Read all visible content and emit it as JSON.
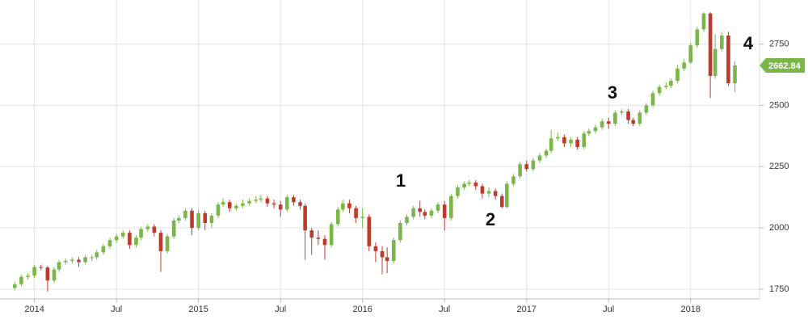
{
  "chart_data": {
    "type": "candlestick",
    "x": [
      2013.88,
      2013.92,
      2013.96,
      2014.0,
      2014.04,
      2014.08,
      2014.12,
      2014.15,
      2014.19,
      2014.23,
      2014.27,
      2014.31,
      2014.35,
      2014.38,
      2014.42,
      2014.46,
      2014.5,
      2014.54,
      2014.58,
      2014.62,
      2014.65,
      2014.69,
      2014.73,
      2014.77,
      2014.81,
      2014.85,
      2014.88,
      2014.92,
      2014.96,
      2015.0,
      2015.04,
      2015.08,
      2015.12,
      2015.15,
      2015.19,
      2015.23,
      2015.27,
      2015.31,
      2015.35,
      2015.38,
      2015.42,
      2015.46,
      2015.5,
      2015.54,
      2015.58,
      2015.62,
      2015.65,
      2015.69,
      2015.73,
      2015.77,
      2015.81,
      2015.85,
      2015.88,
      2015.92,
      2015.96,
      2016.0,
      2016.04,
      2016.08,
      2016.12,
      2016.15,
      2016.19,
      2016.23,
      2016.27,
      2016.31,
      2016.35,
      2016.38,
      2016.42,
      2016.46,
      2016.5,
      2016.54,
      2016.58,
      2016.62,
      2016.65,
      2016.69,
      2016.73,
      2016.77,
      2016.81,
      2016.85,
      2016.88,
      2016.92,
      2016.96,
      2017.0,
      2017.04,
      2017.08,
      2017.12,
      2017.15,
      2017.19,
      2017.23,
      2017.27,
      2017.31,
      2017.35,
      2017.38,
      2017.42,
      2017.46,
      2017.5,
      2017.54,
      2017.58,
      2017.62,
      2017.65,
      2017.69,
      2017.73,
      2017.77,
      2017.81,
      2017.85,
      2017.88,
      2017.92,
      2017.96,
      2018.0,
      2018.04,
      2018.08,
      2018.12,
      2018.15,
      2018.19,
      2018.23,
      2018.27
    ],
    "open": [
      1755,
      1770,
      1800,
      1805,
      1840,
      1838,
      1785,
      1830,
      1860,
      1865,
      1870,
      1860,
      1880,
      1880,
      1900,
      1925,
      1950,
      1965,
      1980,
      1930,
      1960,
      1995,
      2005,
      1980,
      1905,
      1965,
      2030,
      2040,
      2070,
      2000,
      2060,
      2020,
      2050,
      2095,
      2105,
      2080,
      2090,
      2100,
      2110,
      2115,
      2120,
      2100,
      2095,
      2075,
      2125,
      2105,
      2090,
      1990,
      1960,
      1955,
      1930,
      2015,
      2075,
      2100,
      2080,
      2040,
      2045,
      1925,
      1905,
      1880,
      1865,
      1950,
      2020,
      2045,
      2080,
      2065,
      2050,
      2070,
      2095,
      2040,
      2130,
      2165,
      2180,
      2185,
      2170,
      2140,
      2150,
      2130,
      2085,
      2180,
      2210,
      2260,
      2240,
      2275,
      2295,
      2315,
      2365,
      2370,
      2345,
      2360,
      2330,
      2385,
      2395,
      2410,
      2435,
      2425,
      2470,
      2475,
      2440,
      2425,
      2470,
      2500,
      2550,
      2575,
      2580,
      2600,
      2650,
      2675,
      2745,
      2810,
      2875,
      2620,
      2730,
      2785,
      2590
    ],
    "high": [
      1780,
      1810,
      1815,
      1850,
      1850,
      1845,
      1840,
      1870,
      1875,
      1880,
      1880,
      1890,
      1890,
      1910,
      1935,
      1960,
      1975,
      1990,
      1990,
      1970,
      2005,
      2015,
      2015,
      1990,
      1975,
      2040,
      2050,
      2080,
      2080,
      2075,
      2070,
      2060,
      2105,
      2120,
      2115,
      2100,
      2115,
      2120,
      2130,
      2135,
      2130,
      2115,
      2110,
      2135,
      2135,
      2115,
      2100,
      2000,
      1990,
      1970,
      2025,
      2085,
      2115,
      2115,
      2090,
      2080,
      2055,
      1940,
      1925,
      1920,
      1960,
      2030,
      2055,
      2090,
      2110,
      2075,
      2080,
      2105,
      2110,
      2140,
      2175,
      2190,
      2195,
      2195,
      2180,
      2165,
      2160,
      2140,
      2190,
      2220,
      2270,
      2275,
      2285,
      2305,
      2325,
      2400,
      2390,
      2380,
      2370,
      2370,
      2395,
      2405,
      2420,
      2445,
      2450,
      2480,
      2485,
      2485,
      2450,
      2480,
      2510,
      2560,
      2585,
      2595,
      2610,
      2665,
      2690,
      2755,
      2820,
      2880,
      2880,
      2790,
      2800,
      2800,
      2680
    ],
    "low": [
      1745,
      1760,
      1790,
      1795,
      1828,
      1740,
      1775,
      1820,
      1850,
      1855,
      1840,
      1850,
      1865,
      1870,
      1890,
      1915,
      1940,
      1955,
      1915,
      1920,
      1950,
      1985,
      1965,
      1820,
      1895,
      1955,
      2020,
      2030,
      1970,
      1990,
      1990,
      2000,
      2040,
      2085,
      2065,
      2070,
      2080,
      2090,
      2100,
      2105,
      2085,
      2080,
      2045,
      2065,
      2090,
      2075,
      1870,
      1890,
      1930,
      1870,
      1920,
      2005,
      2065,
      2060,
      2020,
      2000,
      1905,
      1860,
      1810,
      1815,
      1855,
      1940,
      2010,
      2035,
      2045,
      2035,
      2040,
      2060,
      1990,
      2030,
      2120,
      2155,
      2170,
      2155,
      2120,
      2125,
      2115,
      2080,
      2080,
      2170,
      2200,
      2230,
      2230,
      2265,
      2285,
      2305,
      2355,
      2330,
      2330,
      2320,
      2320,
      2375,
      2385,
      2400,
      2405,
      2415,
      2460,
      2425,
      2415,
      2415,
      2460,
      2490,
      2540,
      2565,
      2570,
      2590,
      2640,
      2670,
      2735,
      2800,
      2530,
      2610,
      2720,
      2580,
      2555
    ],
    "close": [
      1770,
      1800,
      1805,
      1840,
      1838,
      1785,
      1830,
      1860,
      1865,
      1870,
      1860,
      1880,
      1880,
      1900,
      1925,
      1950,
      1965,
      1980,
      1930,
      1960,
      1995,
      2005,
      1980,
      1905,
      1965,
      2030,
      2040,
      2070,
      2000,
      2060,
      2020,
      2050,
      2095,
      2105,
      2080,
      2090,
      2100,
      2110,
      2115,
      2120,
      2100,
      2095,
      2075,
      2125,
      2105,
      2090,
      1990,
      1960,
      1955,
      1930,
      2015,
      2075,
      2100,
      2080,
      2040,
      2045,
      1925,
      1905,
      1880,
      1865,
      1950,
      2020,
      2045,
      2080,
      2065,
      2050,
      2070,
      2095,
      2040,
      2130,
      2165,
      2180,
      2185,
      2170,
      2140,
      2150,
      2130,
      2085,
      2180,
      2210,
      2260,
      2240,
      2275,
      2295,
      2315,
      2365,
      2370,
      2345,
      2360,
      2330,
      2385,
      2395,
      2410,
      2435,
      2425,
      2470,
      2475,
      2440,
      2425,
      2470,
      2500,
      2550,
      2575,
      2580,
      2600,
      2650,
      2675,
      2745,
      2810,
      2875,
      2620,
      2730,
      2785,
      2590,
      2662.84
    ],
    "up_color": "#7ab648",
    "down_color": "#c0392b",
    "xlim": [
      2013.79,
      2018.42
    ],
    "xticks": [
      {
        "value": 2014,
        "label": "2014"
      },
      {
        "value": 2014.5,
        "label": "Jul"
      },
      {
        "value": 2015,
        "label": "2015"
      },
      {
        "value": 2015.5,
        "label": "Jul"
      },
      {
        "value": 2016,
        "label": "2016"
      },
      {
        "value": 2016.5,
        "label": "Jul"
      },
      {
        "value": 2017,
        "label": "2017"
      },
      {
        "value": 2017.5,
        "label": "Jul"
      },
      {
        "value": 2018,
        "label": "2018"
      }
    ],
    "ylim": [
      1710,
      2930
    ],
    "yticks": [
      1750,
      2000,
      2250,
      2500,
      2750
    ],
    "grid": true,
    "annotations": [
      "1",
      "2",
      "3",
      "4"
    ]
  }
}
